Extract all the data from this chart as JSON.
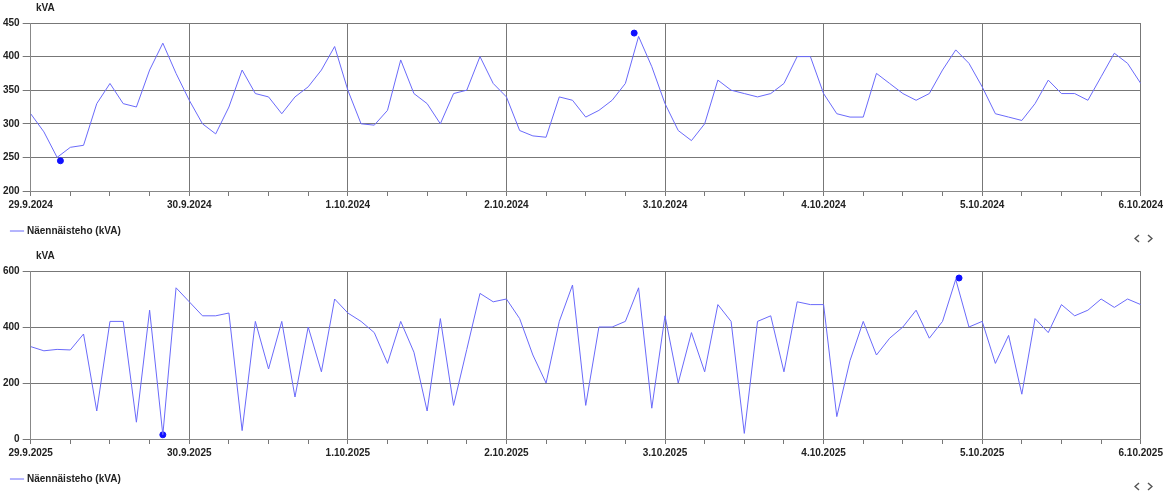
{
  "chart_data": [
    {
      "type": "line",
      "ylabel": "kVA",
      "xlim": [
        "2024-09-29",
        "2024-10-06"
      ],
      "ylim": [
        200,
        450
      ],
      "yticks": [
        200,
        250,
        300,
        350,
        400,
        450
      ],
      "grid": true,
      "legend": "bottom left",
      "xticks": [
        {
          "value": "2024-09-29",
          "label": "29.9.2024"
        },
        {
          "value": "2024-09-29T06:00",
          "label": null
        },
        {
          "value": "2024-09-29T12:00",
          "label": null
        },
        {
          "value": "2024-09-29T18:00",
          "label": null
        },
        {
          "value": "2024-09-30",
          "label": "30.9.2024"
        },
        {
          "value": "2024-09-30T06:00",
          "label": null
        },
        {
          "value": "2024-09-30T12:00",
          "label": null
        },
        {
          "value": "2024-09-30T18:00",
          "label": null
        },
        {
          "value": "2024-10-01",
          "label": "1.10.2024"
        },
        {
          "value": "2024-10-01T06:00",
          "label": null
        },
        {
          "value": "2024-10-01T12:00",
          "label": null
        },
        {
          "value": "2024-10-01T18:00",
          "label": null
        },
        {
          "value": "2024-10-02",
          "label": "2.10.2024"
        },
        {
          "value": "2024-10-02T06:00",
          "label": null
        },
        {
          "value": "2024-10-02T12:00",
          "label": null
        },
        {
          "value": "2024-10-02T18:00",
          "label": null
        },
        {
          "value": "2024-10-03",
          "label": "3.10.2024"
        },
        {
          "value": "2024-10-03T06:00",
          "label": null
        },
        {
          "value": "2024-10-03T12:00",
          "label": null
        },
        {
          "value": "2024-10-03T18:00",
          "label": null
        },
        {
          "value": "2024-10-04",
          "label": "4.10.2024"
        },
        {
          "value": "2024-10-04T06:00",
          "label": null
        },
        {
          "value": "2024-10-04T12:00",
          "label": null
        },
        {
          "value": "2024-10-04T18:00",
          "label": null
        },
        {
          "value": "2024-10-05",
          "label": "5.10.2024"
        },
        {
          "value": "2024-10-05T06:00",
          "label": null
        },
        {
          "value": "2024-10-05T12:00",
          "label": null
        },
        {
          "value": "2024-10-05T18:00",
          "label": null
        },
        {
          "value": "2024-10-06",
          "label": "6.10.2024"
        }
      ],
      "x": [
        "2024-09-29T00:00",
        "2024-09-29T02:00",
        "2024-09-29T04:00",
        "2024-09-29T06:00",
        "2024-09-29T08:00",
        "2024-09-29T10:00",
        "2024-09-29T12:00",
        "2024-09-29T14:00",
        "2024-09-29T16:00",
        "2024-09-29T18:00",
        "2024-09-29T20:00",
        "2024-09-29T22:00",
        "2024-09-30T00:00",
        "2024-09-30T02:00",
        "2024-09-30T04:00",
        "2024-09-30T06:00",
        "2024-09-30T08:00",
        "2024-09-30T10:00",
        "2024-09-30T12:00",
        "2024-09-30T14:00",
        "2024-09-30T16:00",
        "2024-09-30T18:00",
        "2024-09-30T20:00",
        "2024-09-30T22:00",
        "2024-10-01T00:00",
        "2024-10-01T02:00",
        "2024-10-01T04:00",
        "2024-10-01T06:00",
        "2024-10-01T08:00",
        "2024-10-01T10:00",
        "2024-10-01T12:00",
        "2024-10-01T14:00",
        "2024-10-01T16:00",
        "2024-10-01T18:00",
        "2024-10-01T20:00",
        "2024-10-01T22:00",
        "2024-10-02T00:00",
        "2024-10-02T02:00",
        "2024-10-02T04:00",
        "2024-10-02T06:00",
        "2024-10-02T08:00",
        "2024-10-02T10:00",
        "2024-10-02T12:00",
        "2024-10-02T14:00",
        "2024-10-02T16:00",
        "2024-10-02T18:00",
        "2024-10-02T20:00",
        "2024-10-02T22:00",
        "2024-10-03T00:00",
        "2024-10-03T02:00",
        "2024-10-03T04:00",
        "2024-10-03T06:00",
        "2024-10-03T08:00",
        "2024-10-03T10:00",
        "2024-10-03T12:00",
        "2024-10-03T14:00",
        "2024-10-03T16:00",
        "2024-10-03T18:00",
        "2024-10-03T20:00",
        "2024-10-03T22:00",
        "2024-10-04T00:00",
        "2024-10-04T02:00",
        "2024-10-04T04:00",
        "2024-10-04T06:00",
        "2024-10-04T08:00",
        "2024-10-04T10:00",
        "2024-10-04T12:00",
        "2024-10-04T14:00",
        "2024-10-04T16:00",
        "2024-10-04T18:00",
        "2024-10-04T20:00",
        "2024-10-04T22:00",
        "2024-10-05T00:00",
        "2024-10-05T02:00",
        "2024-10-05T04:00",
        "2024-10-05T06:00",
        "2024-10-05T08:00",
        "2024-10-05T10:00",
        "2024-10-05T12:00",
        "2024-10-05T14:00",
        "2024-10-05T16:00",
        "2024-10-05T18:00",
        "2024-10-05T20:00",
        "2024-10-05T22:00",
        "2024-10-06T00:00"
      ],
      "series": [
        {
          "name": "Näennäisteho (kVA)",
          "color": "#6a6afa",
          "marker": "none",
          "values": [
            315,
            288,
            250,
            265,
            268,
            330,
            360,
            330,
            325,
            380,
            420,
            375,
            335,
            300,
            285,
            325,
            380,
            345,
            340,
            315,
            340,
            355,
            380,
            415,
            350,
            300,
            298,
            320,
            395,
            345,
            330,
            300,
            345,
            350,
            400,
            360,
            340,
            290,
            282,
            280,
            340,
            335,
            310,
            320,
            335,
            360,
            430,
            385,
            330,
            290,
            275,
            300,
            365,
            350,
            345,
            340,
            345,
            360,
            400,
            400,
            345,
            315,
            310,
            310,
            375,
            360,
            345,
            335,
            345,
            380,
            410,
            390,
            355,
            315,
            310,
            305,
            330,
            365,
            345,
            345,
            335,
            370,
            405,
            390,
            360
          ]
        },
        {
          "type": "scatter",
          "color": "#1010ff",
          "marker": "circle",
          "x": [
            "2024-09-29T04:30",
            "2024-10-02T19:20"
          ],
          "values": [
            245,
            435
          ]
        }
      ]
    },
    {
      "type": "line",
      "ylabel": "kVA",
      "xlim": [
        "2025-09-29",
        "2025-10-06"
      ],
      "ylim": [
        0,
        600
      ],
      "yticks": [
        0,
        200,
        400,
        600
      ],
      "grid": true,
      "legend": "bottom left",
      "xticks": [
        {
          "value": "2025-09-29",
          "label": "29.9.2025"
        },
        {
          "value": "2025-09-29T06:00",
          "label": null
        },
        {
          "value": "2025-09-29T12:00",
          "label": null
        },
        {
          "value": "2025-09-29T18:00",
          "label": null
        },
        {
          "value": "2025-09-30",
          "label": "30.9.2025"
        },
        {
          "value": "2025-09-30T06:00",
          "label": null
        },
        {
          "value": "2025-09-30T12:00",
          "label": null
        },
        {
          "value": "2025-09-30T18:00",
          "label": null
        },
        {
          "value": "2025-10-01",
          "label": "1.10.2025"
        },
        {
          "value": "2025-10-01T06:00",
          "label": null
        },
        {
          "value": "2025-10-01T12:00",
          "label": null
        },
        {
          "value": "2025-10-01T18:00",
          "label": null
        },
        {
          "value": "2025-10-02",
          "label": "2.10.2025"
        },
        {
          "value": "2025-10-02T06:00",
          "label": null
        },
        {
          "value": "2025-10-02T12:00",
          "label": null
        },
        {
          "value": "2025-10-02T18:00",
          "label": null
        },
        {
          "value": "2025-10-03",
          "label": "3.10.2025"
        },
        {
          "value": "2025-10-03T06:00",
          "label": null
        },
        {
          "value": "2025-10-03T12:00",
          "label": null
        },
        {
          "value": "2025-10-03T18:00",
          "label": null
        },
        {
          "value": "2025-10-04",
          "label": "4.10.2025"
        },
        {
          "value": "2025-10-04T06:00",
          "label": null
        },
        {
          "value": "2025-10-04T12:00",
          "label": null
        },
        {
          "value": "2025-10-04T18:00",
          "label": null
        },
        {
          "value": "2025-10-05",
          "label": "5.10.2025"
        },
        {
          "value": "2025-10-05T06:00",
          "label": null
        },
        {
          "value": "2025-10-05T12:00",
          "label": null
        },
        {
          "value": "2025-10-05T18:00",
          "label": null
        },
        {
          "value": "2025-10-06",
          "label": "6.10.2025"
        }
      ],
      "x": [
        "2025-09-29T00:00",
        "2025-09-29T02:00",
        "2025-09-29T04:00",
        "2025-09-29T06:00",
        "2025-09-29T08:00",
        "2025-09-29T10:00",
        "2025-09-29T12:00",
        "2025-09-29T14:00",
        "2025-09-29T16:00",
        "2025-09-29T18:00",
        "2025-09-29T20:00",
        "2025-09-29T22:00",
        "2025-09-30T00:00",
        "2025-09-30T02:00",
        "2025-09-30T04:00",
        "2025-09-30T06:00",
        "2025-09-30T08:00",
        "2025-09-30T10:00",
        "2025-09-30T12:00",
        "2025-09-30T14:00",
        "2025-09-30T16:00",
        "2025-09-30T18:00",
        "2025-09-30T20:00",
        "2025-09-30T22:00",
        "2025-10-01T00:00",
        "2025-10-01T02:00",
        "2025-10-01T04:00",
        "2025-10-01T06:00",
        "2025-10-01T08:00",
        "2025-10-01T10:00",
        "2025-10-01T12:00",
        "2025-10-01T14:00",
        "2025-10-01T16:00",
        "2025-10-01T18:00",
        "2025-10-01T20:00",
        "2025-10-01T22:00",
        "2025-10-02T00:00",
        "2025-10-02T02:00",
        "2025-10-02T04:00",
        "2025-10-02T06:00",
        "2025-10-02T08:00",
        "2025-10-02T10:00",
        "2025-10-02T12:00",
        "2025-10-02T14:00",
        "2025-10-02T16:00",
        "2025-10-02T18:00",
        "2025-10-02T20:00",
        "2025-10-02T22:00",
        "2025-10-03T00:00",
        "2025-10-03T02:00",
        "2025-10-03T04:00",
        "2025-10-03T06:00",
        "2025-10-03T08:00",
        "2025-10-03T10:00",
        "2025-10-03T12:00",
        "2025-10-03T14:00",
        "2025-10-03T16:00",
        "2025-10-03T18:00",
        "2025-10-03T20:00",
        "2025-10-03T22:00",
        "2025-10-04T00:00",
        "2025-10-04T02:00",
        "2025-10-04T04:00",
        "2025-10-04T06:00",
        "2025-10-04T08:00",
        "2025-10-04T10:00",
        "2025-10-04T12:00",
        "2025-10-04T14:00",
        "2025-10-04T16:00",
        "2025-10-04T18:00",
        "2025-10-04T20:00",
        "2025-10-04T22:00",
        "2025-10-05T00:00",
        "2025-10-05T02:00",
        "2025-10-05T04:00",
        "2025-10-05T06:00",
        "2025-10-05T08:00",
        "2025-10-05T10:00",
        "2025-10-05T12:00",
        "2025-10-05T14:00",
        "2025-10-05T16:00",
        "2025-10-05T18:00",
        "2025-10-05T20:00",
        "2025-10-05T22:00",
        "2025-10-06T00:00"
      ],
      "series": [
        {
          "name": "Näennäisteho (kVA)",
          "color": "#6a6afa",
          "marker": "none",
          "values": [
            330,
            315,
            320,
            318,
            375,
            100,
            420,
            420,
            60,
            460,
            15,
            540,
            490,
            440,
            440,
            450,
            30,
            420,
            250,
            420,
            150,
            400,
            240,
            500,
            450,
            420,
            380,
            270,
            420,
            310,
            100,
            430,
            120,
            320,
            520,
            490,
            500,
            430,
            300,
            200,
            420,
            550,
            120,
            400,
            400,
            420,
            540,
            110,
            440,
            200,
            380,
            240,
            480,
            420,
            20,
            420,
            440,
            240,
            490,
            480,
            480,
            80,
            280,
            420,
            300,
            360,
            400,
            460,
            360,
            420,
            570,
            400,
            420,
            270,
            370,
            160,
            430,
            380,
            480,
            440,
            460,
            500,
            470,
            500,
            480
          ]
        },
        {
          "type": "scatter",
          "color": "#1010ff",
          "marker": "circle",
          "x": [
            "2025-09-29T20:00",
            "2025-10-04T20:30"
          ],
          "values": [
            15,
            575
          ]
        }
      ]
    }
  ]
}
